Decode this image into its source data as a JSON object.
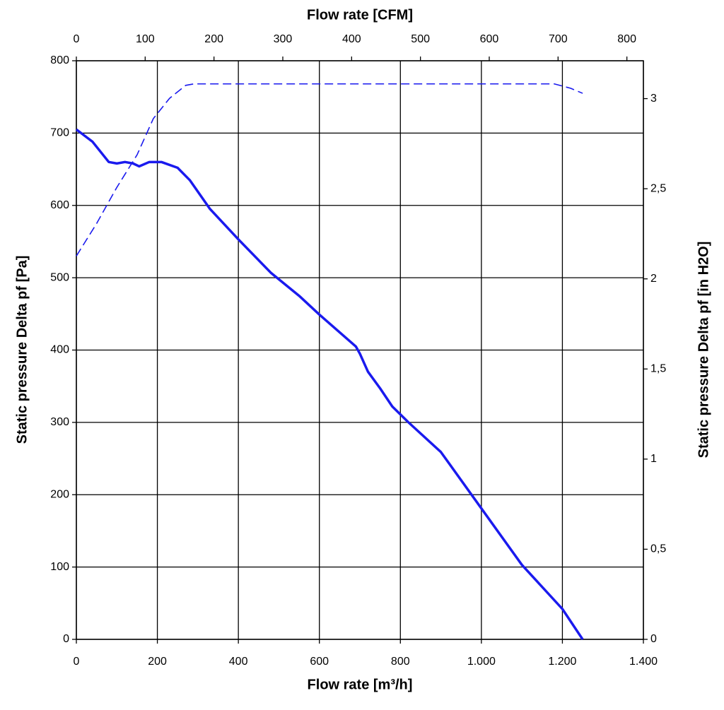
{
  "chart_data": {
    "type": "line",
    "xlabel": "Flow rate [m³/h]",
    "x2label": "Flow rate [CFM]",
    "ylabel": "Static pressure Delta pf [Pa]",
    "y2label": "Static pressure Delta pf [in H2O]",
    "xlim": [
      0,
      1400
    ],
    "xticks": [
      0,
      200,
      400,
      600,
      800,
      {
        "value": 1000,
        "label": "1.000"
      },
      {
        "value": 1200,
        "label": "1.200"
      },
      {
        "value": 1400,
        "label": "1.400"
      }
    ],
    "x2lim": [
      0,
      824
    ],
    "x2ticks": [
      0,
      100,
      200,
      300,
      400,
      500,
      600,
      700,
      800
    ],
    "ylim": [
      0,
      800
    ],
    "yticks": [
      0,
      100,
      200,
      300,
      400,
      500,
      600,
      700,
      800
    ],
    "y2lim": [
      0,
      3.21
    ],
    "y2ticks": [
      0,
      {
        "value": 0.5,
        "label": "0,5"
      },
      1,
      {
        "value": 1.5,
        "label": "1,5"
      },
      2,
      {
        "value": 2.5,
        "label": "2,5"
      },
      3
    ],
    "grid": true,
    "series": [
      {
        "color": "#1a1aee",
        "line_style": "solid",
        "x": [
          0,
          40,
          80,
          100,
          120,
          140,
          155,
          180,
          210,
          250,
          280,
          330,
          400,
          480,
          550,
          600,
          690,
          700,
          720,
          750,
          780,
          820,
          900,
          1000,
          1100,
          1200,
          1250
        ],
        "values": [
          705,
          688,
          660,
          658,
          660,
          658,
          654,
          660,
          660,
          652,
          635,
          595,
          553,
          507,
          475,
          449,
          405,
          395,
          370,
          347,
          322,
          300,
          259,
          181,
          103,
          42,
          0
        ]
      },
      {
        "color": "#1a1aee",
        "line_style": "dashed",
        "x": [
          0,
          50,
          100,
          150,
          190,
          230,
          270,
          290,
          1180,
          1220,
          1250
        ],
        "values": [
          530,
          575,
          625,
          670,
          720,
          748,
          766,
          768,
          768,
          762,
          755
        ]
      }
    ]
  }
}
